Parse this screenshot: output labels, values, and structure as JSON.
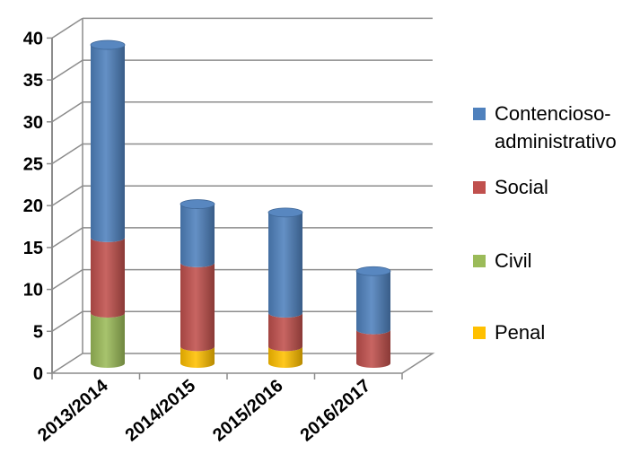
{
  "chart_data": {
    "type": "bar",
    "stacked": true,
    "style": "3d-cylinder",
    "categories": [
      "2013/2014",
      "2014/2015",
      "2015/2016",
      "2016/2017"
    ],
    "series": [
      {
        "name": "Penal",
        "values": [
          0,
          2,
          2,
          0
        ],
        "color": "#FFC000"
      },
      {
        "name": "Civil",
        "values": [
          6,
          0,
          0,
          0
        ],
        "color": "#9BBB59"
      },
      {
        "name": "Social",
        "values": [
          9,
          10,
          4,
          4
        ],
        "color": "#C0504D"
      },
      {
        "name": "Contencioso-administrativo",
        "values": [
          23,
          7,
          12,
          7
        ],
        "color": "#4F81BD"
      }
    ],
    "legend_entries": [
      {
        "series": "Contencioso-administrativo",
        "lines": [
          "Contencioso-",
          "administrativo"
        ]
      },
      {
        "series": "Social",
        "lines": [
          "Social"
        ]
      },
      {
        "series": "Civil",
        "lines": [
          "Civil"
        ]
      },
      {
        "series": "Penal",
        "lines": [
          "Penal"
        ]
      }
    ],
    "ylim": [
      0,
      40
    ],
    "yticks": [
      "0",
      "5",
      "10",
      "15",
      "20",
      "25",
      "30",
      "35",
      "40"
    ],
    "grid": true,
    "legend_position": "right",
    "title": "",
    "xlabel": "",
    "ylabel": ""
  }
}
